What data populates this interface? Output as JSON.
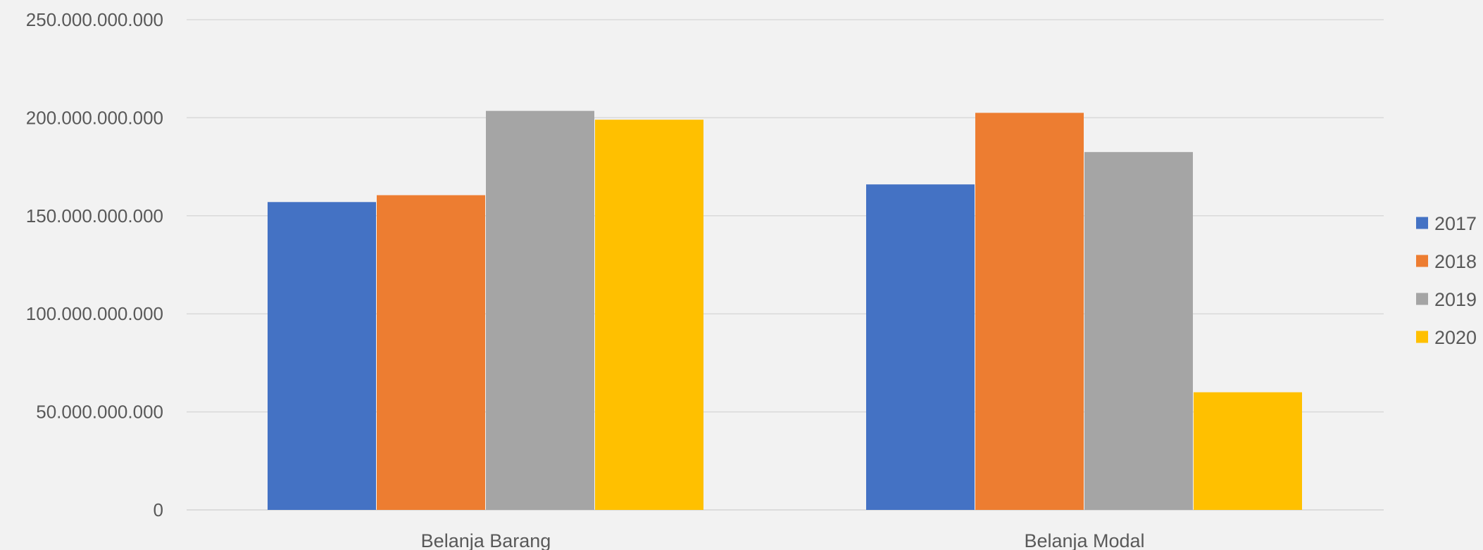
{
  "chart_data": {
    "type": "bar",
    "categories": [
      "Belanja Barang",
      "Belanja Modal"
    ],
    "series": [
      {
        "name": "2017",
        "color": "#4472c4",
        "values": [
          157000000000,
          166000000000
        ]
      },
      {
        "name": "2018",
        "color": "#ed7d31",
        "values": [
          160500000000,
          202500000000
        ]
      },
      {
        "name": "2019",
        "color": "#a5a5a5",
        "values": [
          203500000000,
          182500000000
        ]
      },
      {
        "name": "2020",
        "color": "#ffc000",
        "values": [
          199000000000,
          60000000000
        ]
      }
    ],
    "ylim": [
      0,
      250000000000
    ],
    "yticks": [
      0,
      50000000000,
      100000000000,
      150000000000,
      200000000000,
      250000000000
    ],
    "ytick_labels": [
      "0",
      "50.000.000.000",
      "100.000.000.000",
      "150.000.000.000",
      "200.000.000.000",
      "250.000.000.000"
    ],
    "grid": true,
    "legend": "right"
  }
}
